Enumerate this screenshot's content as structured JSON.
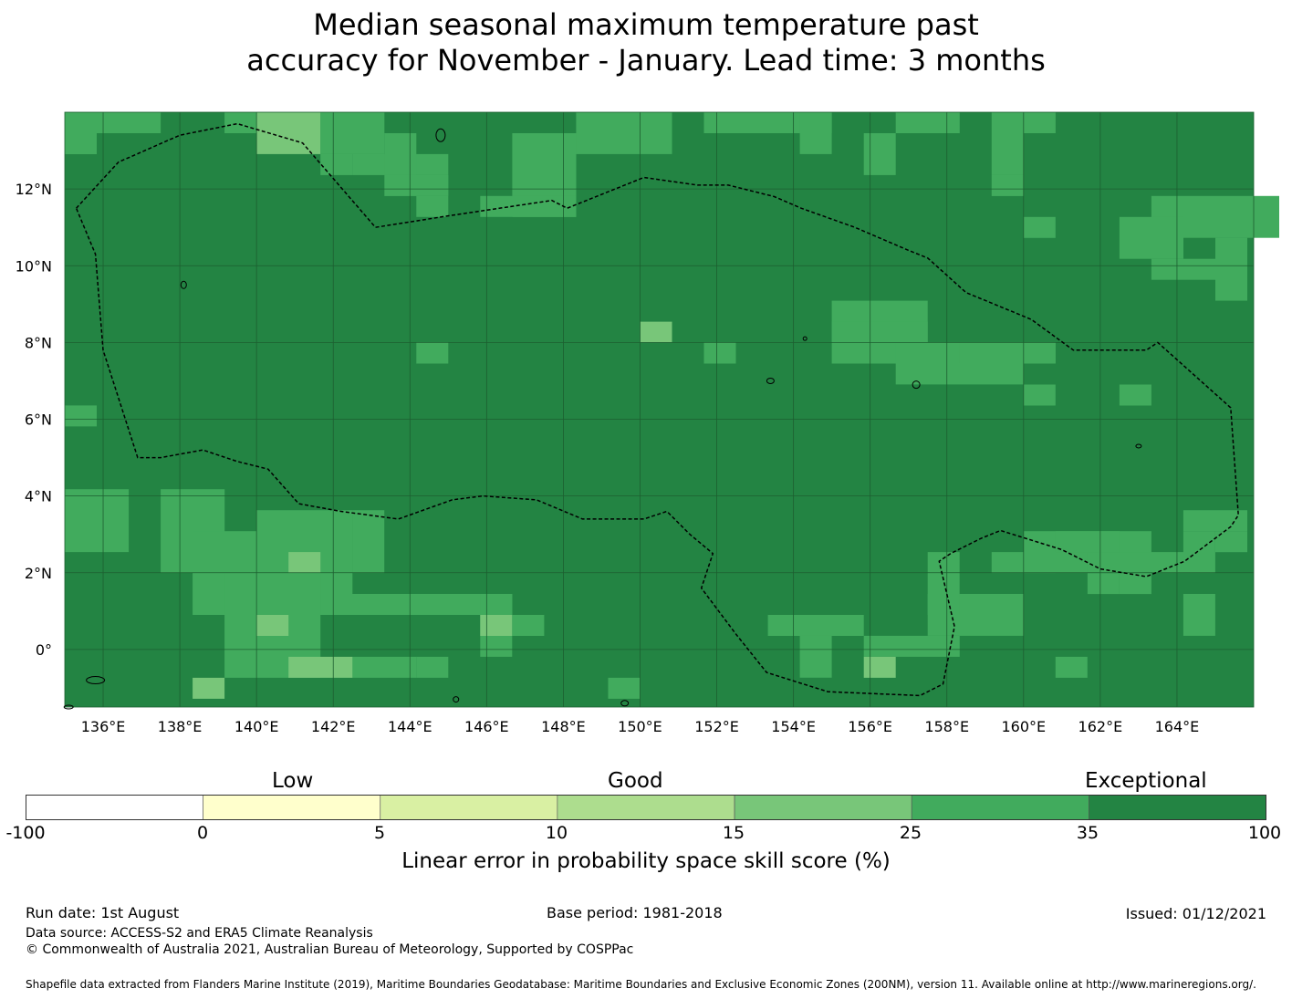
{
  "title_line1": "Median seasonal maximum temperature past",
  "title_line2": "accuracy for November - January. Lead time: 3 months",
  "map": {
    "lon_range": [
      135,
      166
    ],
    "lat_range": [
      -1.5,
      14
    ],
    "x_ticks": [
      "136°E",
      "138°E",
      "140°E",
      "142°E",
      "144°E",
      "146°E",
      "148°E",
      "150°E",
      "152°E",
      "154°E",
      "156°E",
      "158°E",
      "160°E",
      "162°E",
      "164°E"
    ],
    "x_tick_values": [
      136,
      138,
      140,
      142,
      144,
      146,
      148,
      150,
      152,
      154,
      156,
      158,
      160,
      162,
      164
    ],
    "y_ticks": [
      "12°N",
      "10°N",
      "8°N",
      "6°N",
      "4°N",
      "2°N",
      "0°"
    ],
    "y_tick_values": [
      12,
      10,
      8,
      6,
      4,
      2,
      0
    ],
    "colors": {
      "exceptional": "#238443",
      "good_high": "#41ab5d",
      "good_mid": "#78c679",
      "good_low": "#addd8e",
      "grid": "#1d5e30",
      "boundary": "#000000"
    }
  },
  "colorbar": {
    "categories": [
      "Low",
      "Good",
      "Exceptional"
    ],
    "ticks": [
      "-100",
      "0",
      "5",
      "10",
      "15",
      "25",
      "35",
      "100"
    ],
    "colors": [
      "#ffffff",
      "#ffffcc",
      "#d9f0a3",
      "#addd8e",
      "#78c679",
      "#41ab5d",
      "#238443"
    ],
    "label": "Linear error in probability space skill score (%)"
  },
  "footer": {
    "run_date": "Run date: 1st August",
    "base_period": "Base period: 1981-2018",
    "issued": "Issued: 01/12/2021",
    "data_source": "Data source: ACCESS-S2 and ERA5 Climate Reanalysis",
    "copyright": "© Commonwealth of Australia 2021, Australian Bureau of Meteorology, Supported by COSPPac",
    "shapefile": "Shapefile data extracted from Flanders Marine Institute (2019), Maritime Boundaries Geodatabase: Maritime Boundaries and Exclusive Economic Zones (200NM), version 11. Available online at http://www.marineregions.org/."
  }
}
